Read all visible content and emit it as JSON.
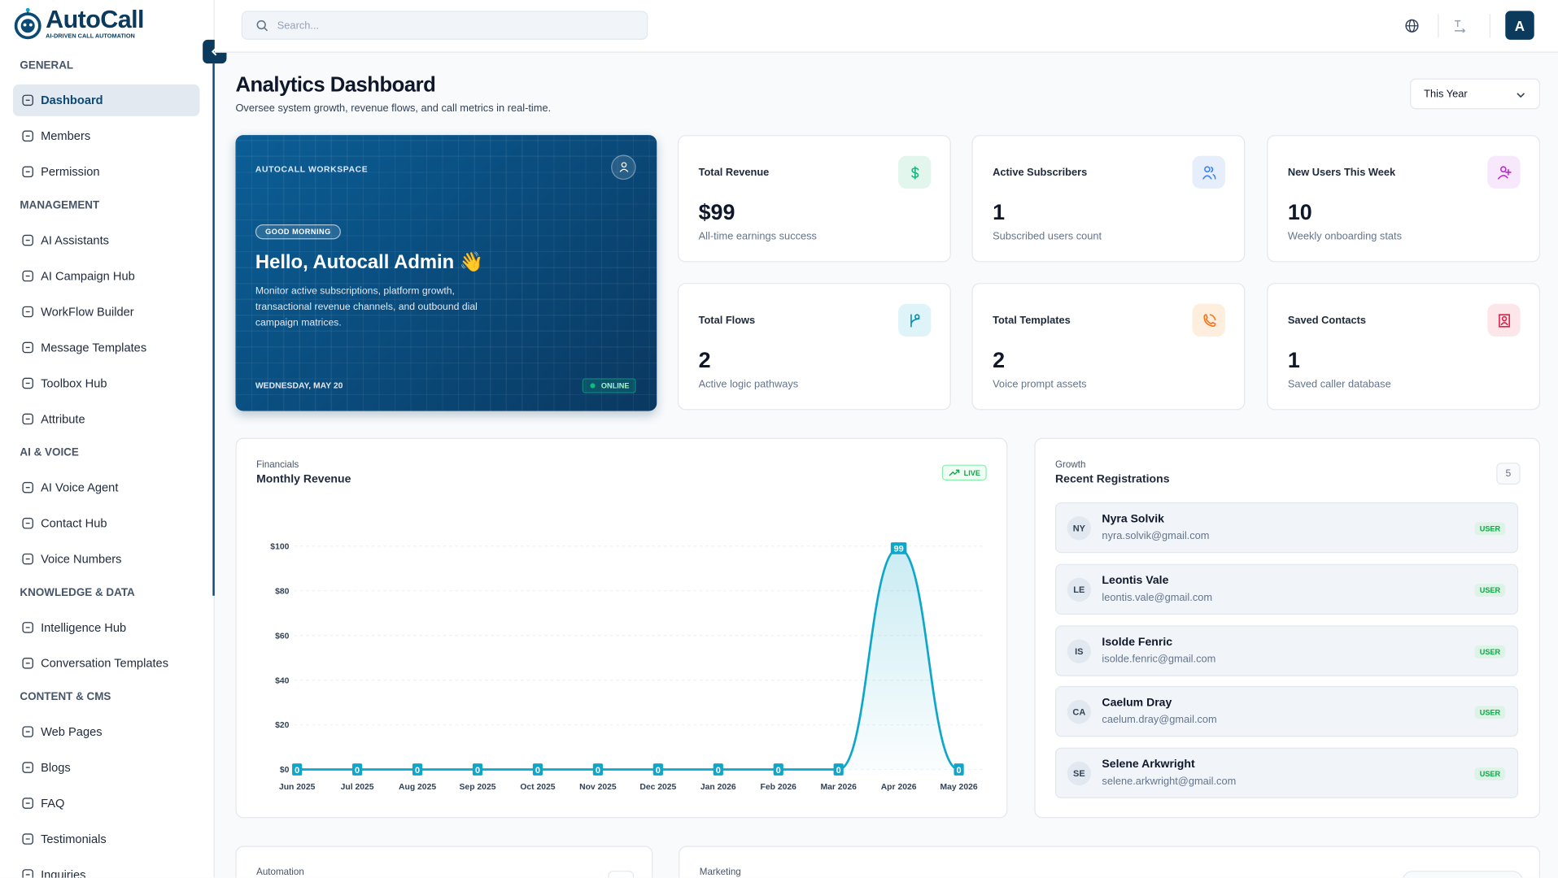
{
  "brand": {
    "name": "AutoCall",
    "tagline": "AI-DRIVEN CALL AUTOMATION"
  },
  "search_placeholder": "Search...",
  "user_initial": "A",
  "sidebar": {
    "sections": [
      {
        "title": "GENERAL",
        "items": [
          "Dashboard",
          "Members",
          "Permission"
        ]
      },
      {
        "title": "MANAGEMENT",
        "items": [
          "AI Assistants",
          "AI Campaign Hub",
          "WorkFlow Builder",
          "Message Templates",
          "Toolbox Hub",
          "Attribute"
        ]
      },
      {
        "title": "AI & VOICE",
        "items": [
          "AI Voice Agent",
          "Contact Hub",
          "Voice Numbers"
        ]
      },
      {
        "title": "KNOWLEDGE & DATA",
        "items": [
          "Intelligence Hub",
          "Conversation Templates"
        ]
      },
      {
        "title": "CONTENT & CMS",
        "items": [
          "Web Pages",
          "Blogs",
          "FAQ",
          "Testimonials",
          "Inquiries"
        ]
      }
    ]
  },
  "page": {
    "title": "Analytics Dashboard",
    "subtitle": "Oversee system growth, revenue flows, and call metrics in real-time.",
    "period": "This Year"
  },
  "welcome": {
    "workspace": "AUTOCALL WORKSPACE",
    "badge": "GOOD MORNING",
    "greeting": "Hello, Autocall Admin 👋",
    "description": "Monitor active subscriptions, platform growth, transactional revenue channels, and outbound dial campaign matrices.",
    "date": "WEDNESDAY, MAY 20",
    "status": "ONLINE"
  },
  "stats": [
    {
      "label": "Total Revenue",
      "value": "$99",
      "caption": "All-time earnings success"
    },
    {
      "label": "Active Subscribers",
      "value": "1",
      "caption": "Subscribed users count"
    },
    {
      "label": "New Users This Week",
      "value": "10",
      "caption": "Weekly onboarding stats"
    },
    {
      "label": "Total Flows",
      "value": "2",
      "caption": "Active logic pathways"
    },
    {
      "label": "Total Templates",
      "value": "2",
      "caption": "Voice prompt assets"
    },
    {
      "label": "Saved Contacts",
      "value": "1",
      "caption": "Saved caller database"
    }
  ],
  "revenue_chart": {
    "type": "line",
    "section": "Financials",
    "title": "Monthly Revenue",
    "badge": "LIVE",
    "categories": [
      "Jun 2025",
      "Jul 2025",
      "Aug 2025",
      "Sep 2025",
      "Oct 2025",
      "Nov 2025",
      "Dec 2025",
      "Jan 2026",
      "Feb 2026",
      "Mar 2026",
      "Apr 2026",
      "May 2026"
    ],
    "values": [
      0,
      0,
      0,
      0,
      0,
      0,
      0,
      0,
      0,
      0,
      99,
      0
    ],
    "ylim": [
      0,
      100
    ],
    "yticks": [
      {
        "value": 0,
        "label": "$0"
      },
      {
        "value": 20,
        "label": "$20"
      },
      {
        "value": 40,
        "label": "$40"
      },
      {
        "value": 60,
        "label": "$60"
      },
      {
        "value": 80,
        "label": "$80"
      },
      {
        "value": 100,
        "label": "$100"
      }
    ],
    "color": "#0fa7c9",
    "grid": true
  },
  "registrations": {
    "section": "Growth",
    "title": "Recent Registrations",
    "count": "5",
    "users": [
      {
        "initials": "NY",
        "name": "Nyra Solvik",
        "email": "nyra.solvik@gmail.com",
        "role": "USER"
      },
      {
        "initials": "LE",
        "name": "Leontis Vale",
        "email": "leontis.vale@gmail.com",
        "role": "USER"
      },
      {
        "initials": "IS",
        "name": "Isolde Fenric",
        "email": "isolde.fenric@gmail.com",
        "role": "USER"
      },
      {
        "initials": "CA",
        "name": "Caelum Dray",
        "email": "caelum.dray@gmail.com",
        "role": "USER"
      },
      {
        "initials": "SE",
        "name": "Selene Arkwright",
        "email": "selene.arkwright@gmail.com",
        "role": "USER"
      }
    ]
  },
  "bottom_cards": [
    {
      "section": "Automation"
    },
    {
      "section": "Marketing"
    }
  ]
}
